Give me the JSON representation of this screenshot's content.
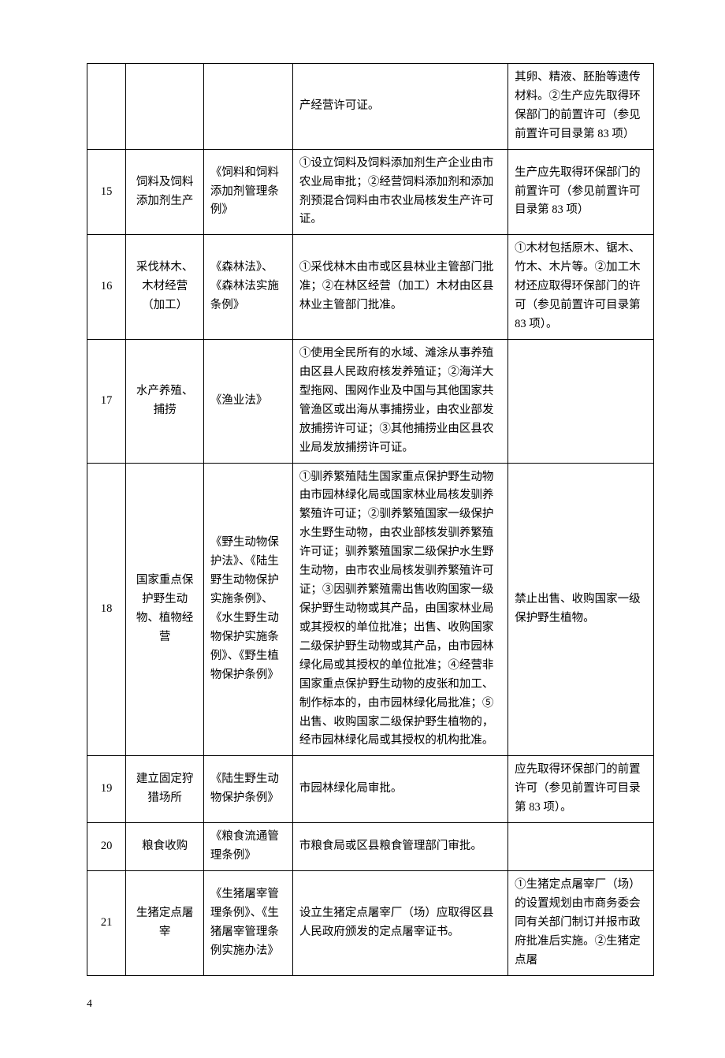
{
  "page_number": "4",
  "rows": [
    {
      "idx": "",
      "name": "",
      "law": "",
      "proc": "产经营许可证。",
      "note": "其卵、精液、胚胎等遗传材料。②生产应先取得环保部门的前置许可（参见前置许可目录第 83 项）"
    },
    {
      "idx": "15",
      "name": "饲料及饲料添加剂生产",
      "law": "《饲料和饲料添加剂管理条例》",
      "proc": "①设立饲料及饲料添加剂生产企业由市农业局审批；②经营饲料添加剂和添加剂预混合饲料由市农业局核发生产许可证。",
      "note": "生产应先取得环保部门的前置许可（参见前置许可目录第 83 项）"
    },
    {
      "idx": "16",
      "name": "采伐林木、木材经营（加工）",
      "law": "《森林法》、《森林法实施条例》",
      "proc": "①采伐林木由市或区县林业主管部门批准；②在林区经营（加工）木材由区县林业主管部门批准。",
      "note": "①木材包括原木、锯木、竹木、木片等。②加工木材还应取得环保部门的许可（参见前置许可目录第 83 项）。"
    },
    {
      "idx": "17",
      "name": "水产养殖、捕捞",
      "law": "《渔业法》",
      "proc": "①使用全民所有的水域、滩涂从事养殖由区县人民政府核发养殖证；②海洋大型拖网、围网作业及中国与其他国家共管渔区或出海从事捕捞业，由农业部发放捕捞许可证；③其他捕捞业由区县农业局发放捕捞许可证。",
      "note": ""
    },
    {
      "idx": "18",
      "name": "国家重点保护野生动物、植物经营",
      "law": "《野生动物保护法》、《陆生野生动物保护实施条例》、《水生野生动物保护实施条例》、《野生植物保护条例》",
      "proc": "①驯养繁殖陆生国家重点保护野生动物由市园林绿化局或国家林业局核发驯养繁殖许可证；②驯养繁殖国家一级保护水生野生动物，由农业部核发驯养繁殖许可证；驯养繁殖国家二级保护水生野生动物，由市农业局核发驯养繁殖许可证；③因驯养繁殖需出售收购国家一级保护野生动物或其产品，由国家林业局或其授权的单位批准；出售、收购国家二级保护野生动物或其产品，由市园林绿化局或其授权的单位批准；④经营非国家重点保护野生动物的皮张和加工、制作标本的，由市园林绿化局批准；⑤出售、收购国家二级保护野生植物的，经市园林绿化局或其授权的机构批准。",
      "note": "禁止出售、收购国家一级保护野生植物。"
    },
    {
      "idx": "19",
      "name": "建立固定狩猎场所",
      "law": "《陆生野生动物保护条例》",
      "proc": "市园林绿化局审批。",
      "note": "应先取得环保部门的前置许可（参见前置许可目录第 83 项）。"
    },
    {
      "idx": "20",
      "name": "粮食收购",
      "law": "《粮食流通管理条例》",
      "proc": "市粮食局或区县粮食管理部门审批。",
      "note": ""
    },
    {
      "idx": "21",
      "name": "生猪定点屠宰",
      "law": "《生猪屠宰管理条例》、《生猪屠宰管理条例实施办法》",
      "proc": "设立生猪定点屠宰厂（场）应取得区县人民政府颁发的定点屠宰证书。",
      "note": "①生猪定点屠宰厂（场）的设置规划由市商务委会同有关部门制订并报市政府批准后实施。②生猪定点屠"
    }
  ]
}
